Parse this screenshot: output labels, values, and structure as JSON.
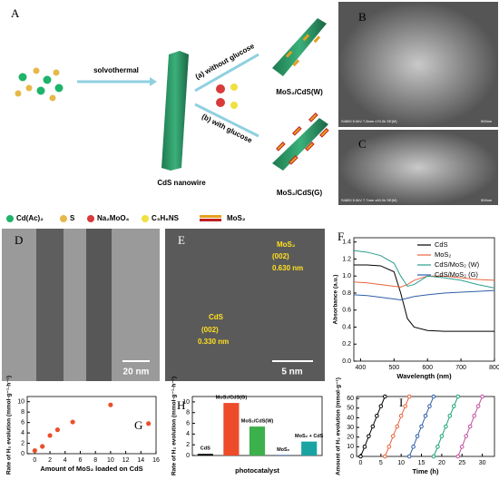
{
  "panel_labels": [
    "A",
    "B",
    "C",
    "D",
    "E"
  ],
  "scheme": {
    "step": "solvothermal",
    "route_a": "(a) without glucose",
    "route_b": "(b) with glucose",
    "nanowire": "CdS nanowire",
    "product_w": "MoS₂/CdS(W)",
    "product_g": "MoS₂/CdS(G)"
  },
  "legend": [
    "Cd(Ac)₂",
    "S",
    "Na₂MoO₄",
    "C₃H₆NS",
    "MoS₂"
  ],
  "sem": {
    "b_info": "S4800 5.0kV 7.8mm x70.0k SE(M)",
    "b_scale": "500nm",
    "c_info": "S4800 5.0kV 7.7mm x60.0k SE(M)",
    "c_scale": "500nm"
  },
  "tem": {
    "d_scale": "20 nm",
    "e_scale": "5 nm",
    "e_mos2": "MoS₂",
    "e_mos2_plane": "(002)",
    "e_mos2_d": "0.630 nm",
    "e_cds": "CdS",
    "e_cds_plane": "(002)",
    "e_cds_d": "0.330 nm"
  },
  "chart_data": [
    {
      "type": "line",
      "panel": "F",
      "x_label": "Wavelength (nm)",
      "y_label": "Absorbance (a.u.)",
      "x": [
        380,
        420,
        460,
        500,
        520,
        540,
        560,
        600,
        650,
        700,
        750,
        800
      ],
      "xlim": [
        380,
        800
      ],
      "xticks": [
        400,
        500,
        600,
        700,
        800
      ],
      "ylim": [
        0,
        1.45
      ],
      "yticks": [
        {
          "value": 0,
          "label": "0.0"
        },
        0.2,
        0.4,
        0.6,
        0.8,
        {
          "value": 1,
          "label": "1.0"
        },
        1.2,
        1.4
      ],
      "series": [
        {
          "name": "CdS",
          "color": "#000000",
          "values": [
            1.13,
            1.13,
            1.12,
            1.05,
            0.8,
            0.5,
            0.4,
            0.36,
            0.35,
            0.35,
            0.35,
            0.35
          ]
        },
        {
          "name": "MoS₂",
          "color": "#e8643c",
          "values": [
            0.93,
            0.92,
            0.9,
            0.88,
            0.87,
            0.9,
            0.95,
            1.0,
            1.0,
            0.98,
            0.96,
            0.95
          ]
        },
        {
          "name": "CdS/MoS₂ (W)",
          "color": "#2a9d8f",
          "values": [
            1.3,
            1.28,
            1.24,
            1.15,
            1.0,
            0.88,
            0.9,
            1.0,
            0.98,
            0.95,
            0.9,
            0.86
          ]
        },
        {
          "name": "CdS/MoS₂ (G)",
          "color": "#2f5fa8",
          "values": [
            0.78,
            0.77,
            0.75,
            0.73,
            0.72,
            0.74,
            0.76,
            0.78,
            0.8,
            0.81,
            0.82,
            0.83
          ]
        }
      ]
    },
    {
      "type": "scatter",
      "panel": "G",
      "x_label": "Amount of MoS₂ loaded on CdS",
      "y_label": "Rate of H₂ evolution (mmol·g⁻¹·h⁻¹)",
      "x": [
        0,
        1,
        2,
        3,
        5,
        10,
        15
      ],
      "values": [
        0.6,
        1.4,
        3.5,
        4.6,
        6.1,
        9.4,
        5.8
      ],
      "color": "#e8502a",
      "xlim": [
        -1,
        16
      ],
      "xticks": [
        0,
        2,
        4,
        6,
        8,
        10,
        12,
        14,
        16
      ],
      "ylim": [
        0,
        11
      ],
      "yticks": [
        0,
        2,
        4,
        6,
        8,
        10
      ]
    },
    {
      "type": "bar",
      "panel": "H",
      "x_label": "photocatalyst",
      "y_label": "Rate of H₂ evolution (mmol·g⁻¹·h⁻¹)",
      "categories": [
        "CdS",
        "MoS₂/CdS(G)",
        "MoS₂/CdS(W)",
        "MoS₂",
        "MoS₂ + CdS"
      ],
      "values": [
        0.3,
        9.8,
        5.4,
        0.1,
        2.6
      ],
      "colors": [
        "#000000",
        "#ee4b2b",
        "#3cb04a",
        "#2f5fa8",
        "#1aa3a3"
      ],
      "ylim": [
        0,
        11
      ],
      "yticks": [
        0,
        2,
        4,
        6,
        8,
        10
      ]
    },
    {
      "type": "line",
      "panel": "I",
      "x_label": "Time (h)",
      "y_label": "Amount of H₂ evolution (mmol·g⁻¹)",
      "xlim": [
        -1,
        33
      ],
      "xticks": [
        0,
        5,
        10,
        15,
        20,
        25,
        30
      ],
      "ylim": [
        0,
        62
      ],
      "yticks": [
        0,
        10,
        20,
        30,
        40,
        50,
        60
      ],
      "markers": true,
      "series": [
        {
          "color": "#000000",
          "x": [
            0,
            1,
            2,
            3,
            4,
            5,
            6
          ],
          "values": [
            0,
            10,
            21,
            31,
            42,
            52,
            62
          ]
        },
        {
          "color": "#e8643c",
          "x": [
            6,
            7,
            8,
            9,
            10,
            11,
            12
          ],
          "values": [
            0,
            10,
            21,
            31,
            42,
            52,
            62
          ]
        },
        {
          "color": "#2f5fa8",
          "x": [
            12,
            13,
            14,
            15,
            16,
            17,
            18
          ],
          "values": [
            0,
            10,
            21,
            31,
            42,
            52,
            62
          ]
        },
        {
          "color": "#1aa37a",
          "x": [
            18,
            19,
            20,
            21,
            22,
            23,
            24
          ],
          "values": [
            0,
            10,
            21,
            31,
            42,
            52,
            62
          ]
        },
        {
          "color": "#c04fa0",
          "x": [
            24,
            25,
            26,
            27,
            28,
            29,
            30
          ],
          "values": [
            0,
            10,
            21,
            31,
            42,
            52,
            62
          ]
        }
      ]
    }
  ]
}
